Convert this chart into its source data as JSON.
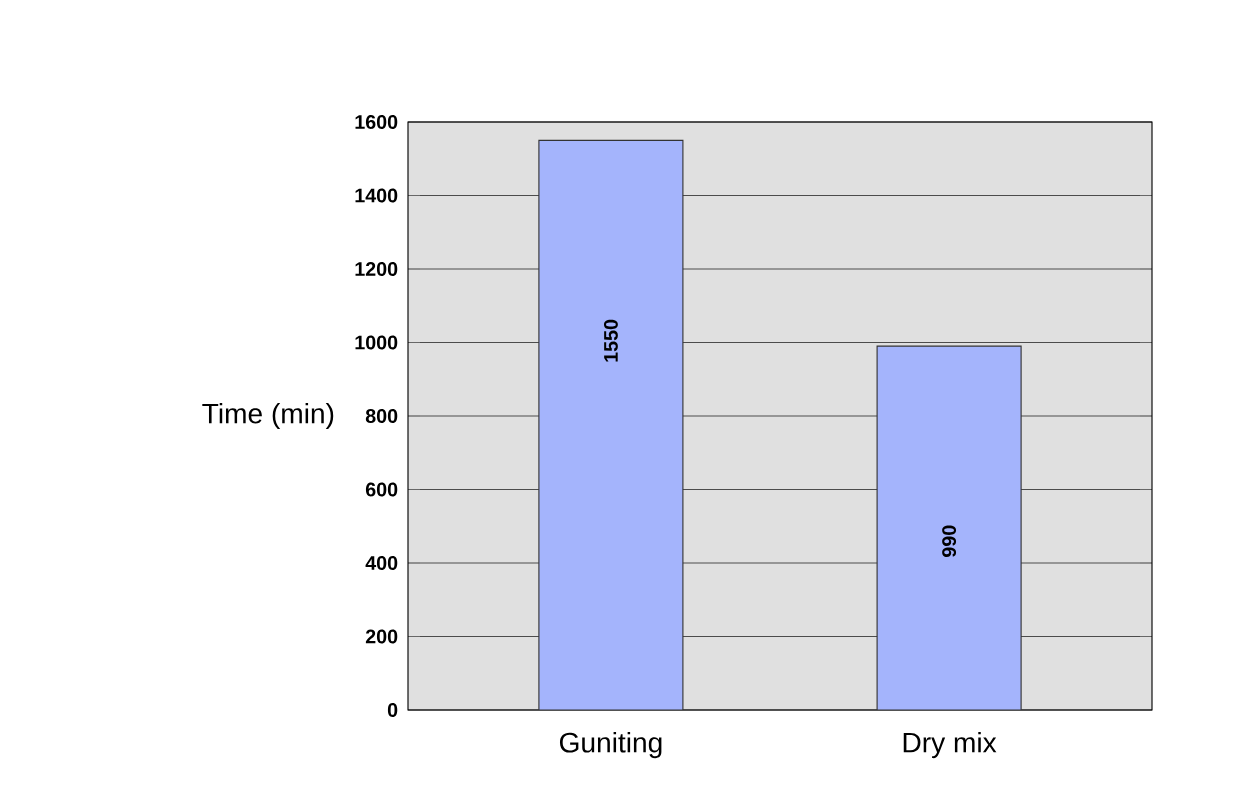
{
  "chart_data": {
    "type": "bar",
    "ylabel": "Time (min)",
    "categories": [
      "Guniting",
      "Dry mix"
    ],
    "values": [
      1550,
      990
    ],
    "color": "#a4b4fc",
    "ylim": [
      0,
      1600
    ],
    "yticks": [
      0,
      200,
      400,
      600,
      800,
      1000,
      1200,
      1400,
      1600
    ],
    "grid": "y",
    "data_labels": true
  }
}
